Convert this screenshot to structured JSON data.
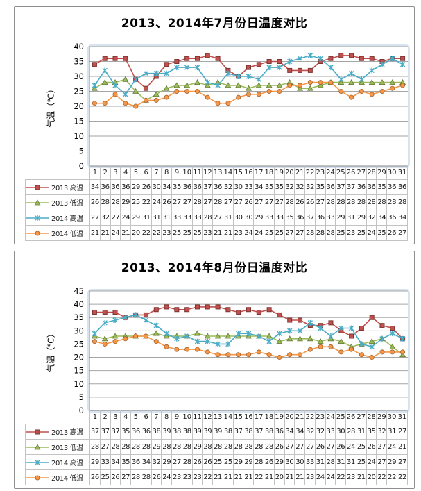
{
  "page": {
    "background": "#ffffff"
  },
  "colors": {
    "panel_border": "#8E8E8E",
    "gridline": "#A6A6A6",
    "axis": "#808080",
    "table_border": "#C3C3C3",
    "plot_glow": "#B8CCE4",
    "text": "#000000"
  },
  "chart_data": [
    {
      "type": "line",
      "title": "2013、2014年7月份日温度对比",
      "xlabel": "",
      "ylabel": "气温（℃）",
      "ylim": [
        0,
        40
      ],
      "ytick_step": 5,
      "grid": true,
      "legend_position": "data-table-left",
      "categories": [
        1,
        2,
        3,
        4,
        5,
        6,
        7,
        8,
        9,
        10,
        11,
        12,
        13,
        14,
        15,
        16,
        17,
        18,
        19,
        20,
        21,
        22,
        23,
        24,
        25,
        26,
        27,
        28,
        29,
        30,
        31
      ],
      "series": [
        {
          "name": "2013 高温",
          "color": "#C0504D",
          "marker": "square",
          "values": [
            34,
            36,
            36,
            36,
            29,
            26,
            30,
            34,
            35,
            36,
            36,
            37,
            36,
            32,
            30,
            33,
            34,
            35,
            35,
            32,
            32,
            32,
            35,
            36,
            37,
            37,
            36,
            36,
            35,
            36,
            36
          ]
        },
        {
          "name": "2013 低温",
          "color": "#9BBB59",
          "marker": "triangle",
          "values": [
            26,
            28,
            28,
            29,
            25,
            22,
            24,
            26,
            27,
            27,
            28,
            27,
            28,
            27,
            27,
            26,
            27,
            27,
            27,
            28,
            26,
            26,
            27,
            28,
            28,
            28,
            28,
            28,
            28,
            28,
            28
          ]
        },
        {
          "name": "2014 高温",
          "color": "#4BACC6",
          "marker": "asterisk",
          "values": [
            27,
            32,
            27,
            24,
            29,
            31,
            31,
            31,
            33,
            33,
            33,
            28,
            27,
            31,
            30,
            30,
            29,
            33,
            33,
            35,
            36,
            37,
            36,
            33,
            29,
            31,
            29,
            32,
            34,
            36,
            34
          ]
        },
        {
          "name": "2014 低温",
          "color": "#F79646",
          "marker": "circle",
          "values": [
            21,
            21,
            24,
            21,
            20,
            22,
            22,
            23,
            25,
            25,
            25,
            23,
            21,
            21,
            23,
            24,
            24,
            25,
            25,
            27,
            27,
            28,
            28,
            28,
            25,
            23,
            25,
            24,
            25,
            26,
            27
          ]
        }
      ]
    },
    {
      "type": "line",
      "title": "2013、2014年8月份日温度对比",
      "xlabel": "",
      "ylabel": "气温（℃）",
      "ylim": [
        0,
        45
      ],
      "ytick_step": 5,
      "grid": true,
      "legend_position": "data-table-left",
      "categories": [
        1,
        2,
        3,
        4,
        5,
        6,
        7,
        8,
        9,
        10,
        11,
        12,
        13,
        14,
        15,
        16,
        17,
        18,
        19,
        20,
        21,
        22,
        23,
        24,
        25,
        26,
        27,
        28,
        29,
        30,
        31
      ],
      "series": [
        {
          "name": "2013 高温",
          "color": "#C0504D",
          "marker": "square",
          "values": [
            37,
            37,
            37,
            35,
            36,
            36,
            38,
            39,
            38,
            38,
            39,
            39,
            39,
            38,
            37,
            38,
            37,
            38,
            36,
            34,
            34,
            32,
            32,
            33,
            30,
            28,
            31,
            35,
            32,
            31,
            27
          ]
        },
        {
          "name": "2013 低温",
          "color": "#9BBB59",
          "marker": "triangle",
          "values": [
            28,
            27,
            28,
            28,
            28,
            28,
            29,
            28,
            28,
            28,
            29,
            28,
            28,
            28,
            28,
            28,
            28,
            28,
            26,
            27,
            27,
            27,
            26,
            27,
            26,
            24,
            25,
            26,
            27,
            24,
            21
          ]
        },
        {
          "name": "2014 高温",
          "color": "#4BACC6",
          "marker": "asterisk",
          "values": [
            29,
            33,
            34,
            35,
            36,
            34,
            32,
            29,
            27,
            28,
            26,
            26,
            25,
            25,
            29,
            29,
            28,
            26,
            29,
            30,
            30,
            33,
            31,
            28,
            31,
            31,
            25,
            24,
            27,
            29,
            27
          ]
        },
        {
          "name": "2014 低温",
          "color": "#F79646",
          "marker": "circle",
          "values": [
            26,
            25,
            26,
            27,
            28,
            28,
            26,
            24,
            23,
            23,
            23,
            22,
            21,
            21,
            21,
            21,
            22,
            21,
            20,
            21,
            21,
            23,
            24,
            24,
            22,
            23,
            21,
            20,
            22,
            22,
            22
          ]
        }
      ]
    }
  ]
}
